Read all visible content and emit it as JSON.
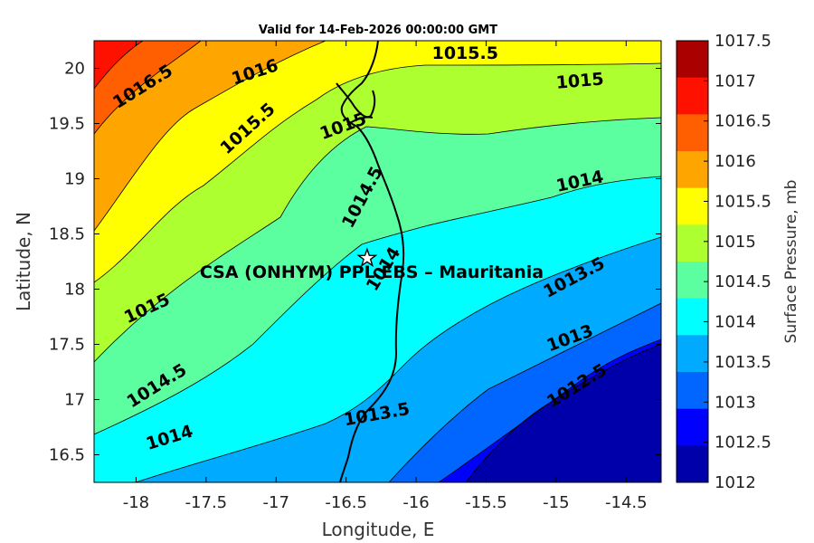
{
  "title": "Valid for 14-Feb-2026 00:00:00 GMT",
  "xlabel": "Longitude, E",
  "ylabel": "Latitude, N",
  "colorbar_label": "Surface Pressure, mb",
  "site_label": "CSA (ONHYM) PPL EBS  – Mauritania",
  "site_location": {
    "lon": -16.35,
    "lat": 18.28
  },
  "xlim": [
    -18.3,
    -14.25
  ],
  "ylim": [
    16.25,
    20.25
  ],
  "x_ticks": [
    "-18",
    "-17.5",
    "-17",
    "-16.5",
    "-16",
    "-15.5",
    "-15",
    "-14.5"
  ],
  "y_ticks": [
    "20",
    "19.5",
    "19",
    "18.5",
    "18",
    "17.5",
    "17",
    "16.5"
  ],
  "colorbar_ticks": [
    "1017.5",
    "1017",
    "1016.5",
    "1016",
    "1015.5",
    "1015",
    "1014.5",
    "1014",
    "1013.5",
    "1013",
    "1012.5",
    "1012"
  ],
  "colorbar_colors": [
    "#aa0000",
    "#ff1100",
    "#ff5f00",
    "#ffa500",
    "#ffff00",
    "#adff2f",
    "#5cffa0",
    "#00ffff",
    "#00aaff",
    "#0066ff",
    "#0000ff",
    "#0000aa"
  ],
  "contour_labels": [
    {
      "text": "1016.5",
      "lon": -17.95,
      "lat": 19.83,
      "angle": -32
    },
    {
      "text": "1016",
      "lon": -17.15,
      "lat": 19.96,
      "angle": -18
    },
    {
      "text": "1015.5",
      "lon": -15.65,
      "lat": 20.13,
      "angle": 0
    },
    {
      "text": "1015",
      "lon": -14.83,
      "lat": 19.88,
      "angle": -5
    },
    {
      "text": "1015.5",
      "lon": -17.2,
      "lat": 19.45,
      "angle": -42
    },
    {
      "text": "1015",
      "lon": -16.52,
      "lat": 19.47,
      "angle": -20
    },
    {
      "text": "1014.5",
      "lon": -16.38,
      "lat": 18.83,
      "angle": -62
    },
    {
      "text": "1014",
      "lon": -14.83,
      "lat": 18.97,
      "angle": -12
    },
    {
      "text": "1014",
      "lon": -16.23,
      "lat": 18.18,
      "angle": -58
    },
    {
      "text": "1013.5",
      "lon": -14.87,
      "lat": 18.1,
      "angle": -28
    },
    {
      "text": "1015",
      "lon": -17.92,
      "lat": 17.82,
      "angle": -25
    },
    {
      "text": "1013",
      "lon": -14.9,
      "lat": 17.55,
      "angle": -20
    },
    {
      "text": "1014.5",
      "lon": -17.85,
      "lat": 17.12,
      "angle": -32
    },
    {
      "text": "1012.5",
      "lon": -14.85,
      "lat": 17.12,
      "angle": -32
    },
    {
      "text": "1013.5",
      "lon": -16.28,
      "lat": 16.86,
      "angle": -10
    },
    {
      "text": "1014",
      "lon": -17.76,
      "lat": 16.65,
      "angle": -17
    }
  ]
}
